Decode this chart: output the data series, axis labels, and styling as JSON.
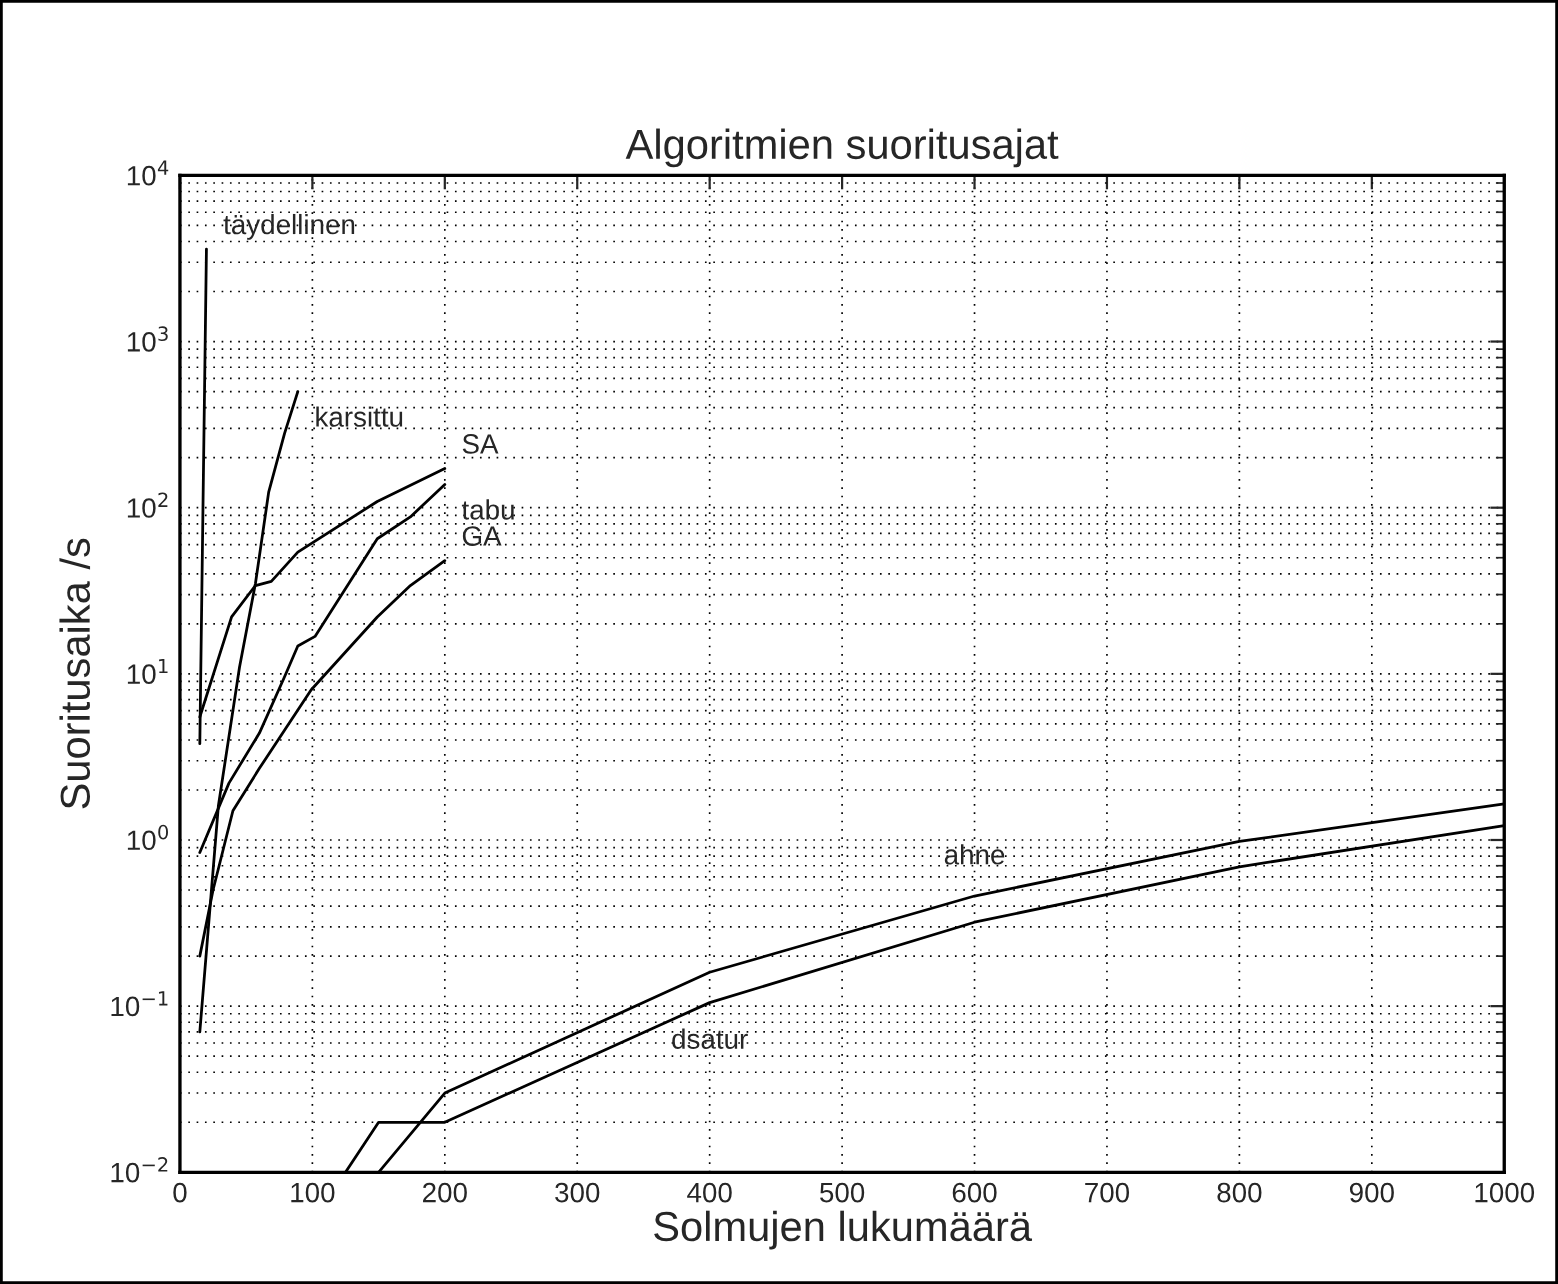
{
  "chart_data": {
    "type": "line",
    "title": "Algoritmien suoritusajat",
    "xlabel": "Solmujen lukumäärä",
    "ylabel": "Suoritusaika /s",
    "log": "y",
    "grid": true,
    "xlim": [
      0,
      1000
    ],
    "ylim": [
      0.01,
      10000
    ],
    "xticks": [
      0,
      100,
      200,
      300,
      400,
      500,
      600,
      700,
      800,
      900,
      1000
    ],
    "yticks": [
      {
        "value": 0.01,
        "label": "10$^{−2}$"
      },
      {
        "value": 0.1,
        "label": "10$^{−1}$"
      },
      {
        "value": 1,
        "label": "10$^{0}$"
      },
      {
        "value": 10,
        "label": "10$^{1}$"
      },
      {
        "value": 100,
        "label": "10$^{2}$"
      },
      {
        "value": 1000,
        "label": "10$^{3}$"
      },
      {
        "value": 10000,
        "label": "10$^{4}$"
      }
    ],
    "series": [
      {
        "name": "täydellinen",
        "color": "#000000",
        "x": [
          15,
          20
        ],
        "values": [
          3.8,
          3600
        ]
      },
      {
        "name": "karsittu",
        "color": "#000000",
        "x": [
          15,
          29,
          45,
          57,
          67,
          79,
          89
        ],
        "values": [
          0.07,
          1.6,
          11,
          35,
          124,
          280,
          500
        ]
      },
      {
        "name": "SA",
        "color": "#000000",
        "x": [
          15,
          39,
          57,
          69,
          89,
          149,
          200
        ],
        "values": [
          5.5,
          22,
          34,
          36,
          54,
          109,
          172
        ]
      },
      {
        "name": "tabu",
        "color": "#000000",
        "x": [
          15,
          37,
          60,
          79,
          89,
          102,
          149,
          174,
          200
        ],
        "values": [
          0.84,
          2.2,
          4.4,
          9.6,
          14.7,
          16.8,
          65,
          88,
          138
        ]
      },
      {
        "name": "GA",
        "color": "#000000",
        "x": [
          15,
          25,
          40,
          60,
          99,
          149,
          174,
          200
        ],
        "values": [
          0.2,
          0.5,
          1.5,
          2.7,
          8,
          22,
          34,
          48
        ]
      },
      {
        "name": "ahne",
        "color": "#000000",
        "x": [
          150,
          200,
          400,
          600,
          800,
          1000
        ],
        "values": [
          0.01,
          0.03,
          0.16,
          0.46,
          0.98,
          1.65
        ]
      },
      {
        "name": "dsatur",
        "color": "#000000",
        "x": [
          125,
          150,
          200,
          400,
          600,
          800,
          1000
        ],
        "values": [
          0.01,
          0.02,
          0.02,
          0.105,
          0.32,
          0.69,
          1.22
        ]
      }
    ]
  }
}
